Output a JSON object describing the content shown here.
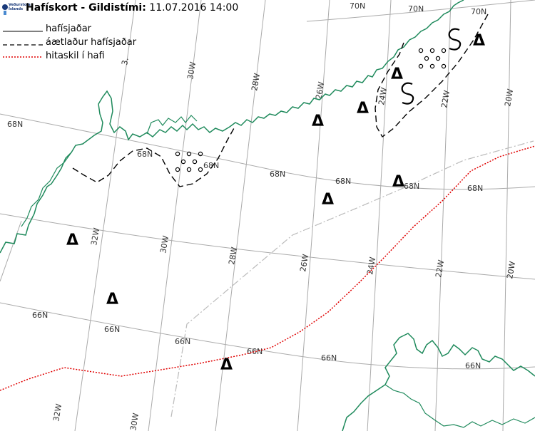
{
  "header": {
    "title_bold": "Hafískort - Gildistími:",
    "title_value": "11.07.2016 14:00",
    "logo_line1": "Veðurstofa",
    "logo_line2": "Íslands"
  },
  "legend": [
    {
      "label": "hafísjaðar",
      "style": "solid",
      "color": "#000000"
    },
    {
      "label": "áætlaður hafísjaðar",
      "style": "dashed",
      "color": "#000000"
    },
    {
      "label": "hitaskil í hafi",
      "style": "dotted",
      "color": "#e00000"
    }
  ],
  "colors": {
    "coast": "#1f8a5c",
    "grid": "#aaaaaa",
    "ice_edge": "#000000",
    "front": "#e00000",
    "median": "#bbbbbb"
  },
  "grid_labels": {
    "lat_68": "68N",
    "lat_66": "66N",
    "lat_70": "70N",
    "lon_32": "32W",
    "lon_30": "30W",
    "lon_28": "28W",
    "lon_26": "26W",
    "lon_24": "24W",
    "lon_22": "22W",
    "lon_20": "20W",
    "lon_3x": "3."
  },
  "symbols": {
    "triangle": "Δ",
    "s_mark": "S",
    "dots": "ice-concentration-dots"
  }
}
